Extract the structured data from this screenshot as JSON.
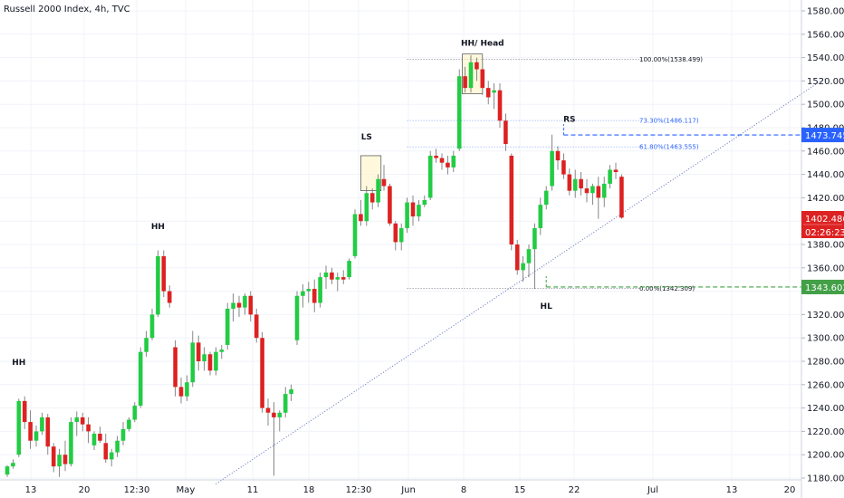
{
  "header": {
    "title": "Russell 2000 Index, 4h, TVC"
  },
  "chart_data": {
    "type": "candlestick",
    "title": "Russell 2000 Index, 4h, TVC",
    "ylim": [
      1172,
      1592
    ],
    "y_ticks": [
      "1180.000",
      "1200.000",
      "1220.000",
      "1240.000",
      "1260.000",
      "1280.000",
      "1300.000",
      "1320.000",
      "1340.000",
      "1360.000",
      "1380.000",
      "1400.000",
      "1420.000",
      "1440.000",
      "1460.000",
      "1480.000",
      "1500.000",
      "1520.000",
      "1540.000",
      "1560.000",
      "1580.000"
    ],
    "x_ticks": [
      "13",
      "20",
      "12:30",
      "May",
      "11",
      "18",
      "12:30",
      "Jun",
      "8",
      "15",
      "22",
      "Jul",
      "13",
      "20"
    ],
    "up_color": "#22cc44",
    "down_color": "#dd2222",
    "candles": [
      [
        1183,
        1191,
        1181,
        1190
      ],
      [
        1190,
        1196,
        1188,
        1193
      ],
      [
        1200,
        1248,
        1198,
        1246
      ],
      [
        1246,
        1250,
        1222,
        1228
      ],
      [
        1228,
        1238,
        1205,
        1212
      ],
      [
        1212,
        1225,
        1207,
        1220
      ],
      [
        1220,
        1236,
        1217,
        1232
      ],
      [
        1232,
        1235,
        1200,
        1207
      ],
      [
        1207,
        1210,
        1185,
        1190
      ],
      [
        1190,
        1205,
        1181,
        1200
      ],
      [
        1200,
        1212,
        1186,
        1192
      ],
      [
        1192,
        1232,
        1190,
        1228
      ],
      [
        1228,
        1237,
        1216,
        1232
      ],
      [
        1232,
        1236,
        1220,
        1226
      ],
      [
        1226,
        1232,
        1210,
        1220
      ],
      [
        1208,
        1220,
        1204,
        1218
      ],
      [
        1218,
        1224,
        1210,
        1212
      ],
      [
        1210,
        1218,
        1193,
        1196
      ],
      [
        1196,
        1205,
        1190,
        1202
      ],
      [
        1202,
        1216,
        1198,
        1212
      ],
      [
        1212,
        1228,
        1208,
        1222
      ],
      [
        1222,
        1232,
        1220,
        1230
      ],
      [
        1230,
        1245,
        1228,
        1242
      ],
      [
        1242,
        1292,
        1240,
        1288
      ],
      [
        1288,
        1306,
        1284,
        1300
      ],
      [
        1300,
        1325,
        1298,
        1320
      ],
      [
        1320,
        1375,
        1318,
        1370
      ],
      [
        1370,
        1375,
        1335,
        1340
      ],
      [
        1340,
        1345,
        1326,
        1330
      ],
      [
        1292,
        1298,
        1250,
        1258
      ],
      [
        1258,
        1266,
        1244,
        1250
      ],
      [
        1250,
        1268,
        1246,
        1262
      ],
      [
        1262,
        1306,
        1258,
        1296
      ],
      [
        1296,
        1302,
        1272,
        1280
      ],
      [
        1280,
        1292,
        1272,
        1286
      ],
      [
        1286,
        1288,
        1268,
        1272
      ],
      [
        1272,
        1292,
        1268,
        1288
      ],
      [
        1288,
        1294,
        1282,
        1290
      ],
      [
        1294,
        1330,
        1290,
        1325
      ],
      [
        1325,
        1338,
        1314,
        1330
      ],
      [
        1330,
        1336,
        1318,
        1326
      ],
      [
        1326,
        1338,
        1320,
        1336
      ],
      [
        1336,
        1340,
        1314,
        1320
      ],
      [
        1320,
        1325,
        1296,
        1300
      ],
      [
        1300,
        1305,
        1236,
        1240
      ],
      [
        1240,
        1248,
        1225,
        1236
      ],
      [
        1236,
        1245,
        1182,
        1232
      ],
      [
        1232,
        1238,
        1220,
        1236
      ],
      [
        1236,
        1258,
        1232,
        1252
      ],
      [
        1252,
        1260,
        1246,
        1256
      ],
      [
        1298,
        1340,
        1294,
        1336
      ],
      [
        1336,
        1346,
        1326,
        1340
      ],
      [
        1340,
        1348,
        1330,
        1342
      ],
      [
        1342,
        1350,
        1322,
        1330
      ],
      [
        1330,
        1356,
        1326,
        1352
      ],
      [
        1352,
        1362,
        1342,
        1356
      ],
      [
        1356,
        1360,
        1346,
        1350
      ],
      [
        1350,
        1356,
        1340,
        1352
      ],
      [
        1352,
        1358,
        1346,
        1350
      ],
      [
        1352,
        1368,
        1350,
        1366
      ],
      [
        1370,
        1410,
        1368,
        1406
      ],
      [
        1406,
        1418,
        1396,
        1400
      ],
      [
        1400,
        1430,
        1396,
        1424
      ],
      [
        1424,
        1428,
        1410,
        1416
      ],
      [
        1416,
        1440,
        1412,
        1436
      ],
      [
        1436,
        1448,
        1426,
        1430
      ],
      [
        1430,
        1432,
        1396,
        1398
      ],
      [
        1398,
        1400,
        1375,
        1382
      ],
      [
        1382,
        1398,
        1375,
        1394
      ],
      [
        1394,
        1420,
        1390,
        1416
      ],
      [
        1416,
        1422,
        1396,
        1404
      ],
      [
        1404,
        1418,
        1400,
        1414
      ],
      [
        1414,
        1422,
        1412,
        1418
      ],
      [
        1420,
        1460,
        1418,
        1456
      ],
      [
        1456,
        1462,
        1450,
        1454
      ],
      [
        1454,
        1458,
        1444,
        1450
      ],
      [
        1450,
        1456,
        1440,
        1446
      ],
      [
        1446,
        1460,
        1442,
        1456
      ],
      [
        1462,
        1530,
        1460,
        1524
      ],
      [
        1524,
        1532,
        1510,
        1514
      ],
      [
        1514,
        1542,
        1510,
        1536
      ],
      [
        1536,
        1540,
        1520,
        1530
      ],
      [
        1530,
        1536,
        1508,
        1514
      ],
      [
        1514,
        1520,
        1500,
        1506
      ],
      [
        1510,
        1518,
        1496,
        1512
      ],
      [
        1512,
        1518,
        1480,
        1486
      ],
      [
        1486,
        1492,
        1460,
        1466
      ],
      [
        1456,
        1458,
        1375,
        1380
      ],
      [
        1380,
        1384,
        1354,
        1358
      ],
      [
        1358,
        1370,
        1348,
        1364
      ],
      [
        1364,
        1380,
        1352,
        1376
      ],
      [
        1376,
        1398,
        1342,
        1394
      ],
      [
        1394,
        1420,
        1388,
        1414
      ],
      [
        1414,
        1430,
        1410,
        1426
      ],
      [
        1430,
        1474,
        1426,
        1460
      ],
      [
        1460,
        1464,
        1444,
        1452
      ],
      [
        1452,
        1458,
        1436,
        1440
      ],
      [
        1440,
        1445,
        1422,
        1426
      ],
      [
        1426,
        1444,
        1420,
        1436
      ],
      [
        1436,
        1442,
        1422,
        1428
      ],
      [
        1428,
        1436,
        1416,
        1424
      ],
      [
        1424,
        1432,
        1414,
        1430
      ],
      [
        1430,
        1438,
        1402,
        1420
      ],
      [
        1420,
        1438,
        1412,
        1432
      ],
      [
        1432,
        1448,
        1428,
        1444
      ],
      [
        1444,
        1450,
        1436,
        1442
      ],
      [
        1438,
        1440,
        1402,
        1403
      ]
    ],
    "annotations": [
      {
        "text": "HH",
        "price": 1277,
        "candle": 2
      },
      {
        "text": "HH",
        "price": 1393,
        "candle": 26
      },
      {
        "text": "LS",
        "price": 1470,
        "candle": 62
      },
      {
        "text": "HH/ Head",
        "price": 1550,
        "candle": 82
      },
      {
        "text": "RS",
        "price": 1485,
        "candle": 97
      },
      {
        "text": "HL",
        "price": 1325,
        "candle": 93
      }
    ],
    "boxes": [
      {
        "c0": 61,
        "c1": 64.5,
        "top": 1456,
        "bottom": 1426
      },
      {
        "c0": 78.5,
        "c1": 82,
        "top": 1543,
        "bottom": 1509
      }
    ],
    "fib_levels": [
      {
        "label": "100.00%(1538.499)",
        "price": 1538.499,
        "color": "#131722"
      },
      {
        "label": "73.30%(1486.117)",
        "price": 1486.117,
        "color": "#2962ff"
      },
      {
        "label": "61.80%(1463.555)",
        "price": 1463.555,
        "color": "#2962ff"
      },
      {
        "label": "0.00%(1342.309)",
        "price": 1342.309,
        "color": "#131722"
      }
    ],
    "price_lines": [
      {
        "label": "1473.745",
        "price": 1473.745,
        "color": "#2962ff",
        "from_candle": 96
      },
      {
        "label": "1343.602",
        "price": 1343.602,
        "color": "#43a047",
        "from_candle": 93
      }
    ],
    "last_price": {
      "label": "1402.486",
      "countdown": "02:26:23",
      "price": 1402.486,
      "color": "#dd2222"
    },
    "trendline": {
      "x_candle": [
        36,
        141
      ],
      "price": [
        1175,
        1522
      ],
      "color": "#5c6bc0"
    }
  }
}
